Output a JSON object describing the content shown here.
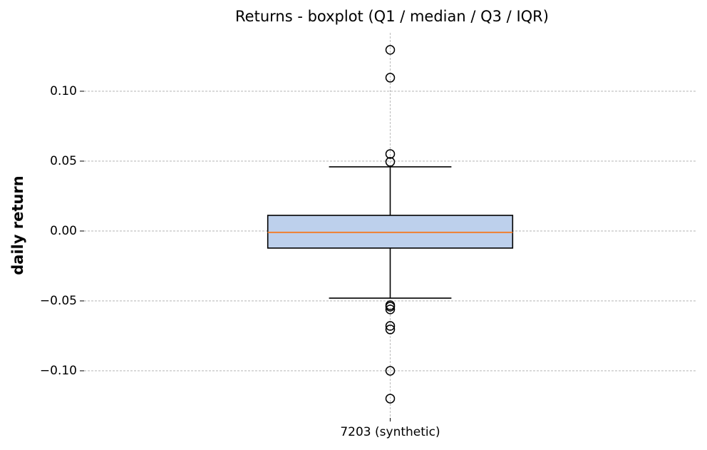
{
  "chart_data": {
    "type": "boxplot",
    "title": "Returns - boxplot (Q1 / median / Q3 / IQR)",
    "y_label": "daily return",
    "categories": [
      "7203 (synthetic)"
    ],
    "boxes": [
      {
        "q1": -0.0122,
        "median": -0.001,
        "q3": 0.0112,
        "whisker_low": -0.048,
        "whisker_high": 0.0459,
        "outliers": [
          0.1296,
          0.1097,
          0.0551,
          0.0495,
          -0.0531,
          -0.0541,
          -0.0561,
          -0.0679,
          -0.0704,
          -0.1,
          -0.1199
        ]
      }
    ],
    "box_color": "#bdd0ec",
    "median_color": "#f08030",
    "ylim": [
      -0.1337,
      0.1418
    ],
    "yticks": [
      {
        "value": -0.1,
        "label": "−0.10"
      },
      {
        "value": -0.05,
        "label": "−0.05"
      },
      {
        "value": 0,
        "label": "0.00"
      },
      {
        "value": 0.05,
        "label": "0.05"
      },
      {
        "value": 0.1,
        "label": "0.10"
      }
    ],
    "grid": true
  }
}
